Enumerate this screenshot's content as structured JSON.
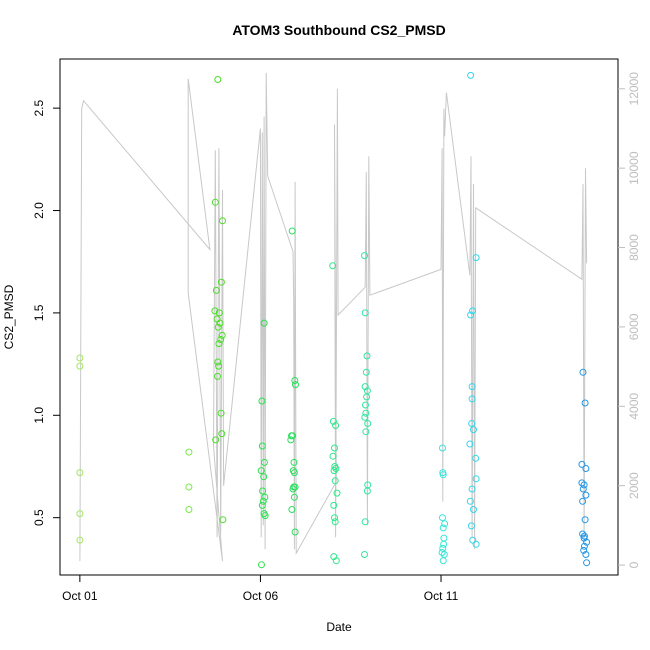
{
  "chart_data": {
    "type": "scatter",
    "title": "ATOM3 Southbound CS2_PMSD",
    "xlabel": "Date",
    "ylabel": "CS2_PMSD",
    "y_ticks": [
      0.5,
      1.0,
      1.5,
      2.0,
      2.5
    ],
    "y_tick_labels": [
      "0.5",
      "1.0",
      "1.5",
      "2.0",
      "2.5"
    ],
    "ylim": [
      0.22,
      2.74
    ],
    "y2_ticks": [
      0,
      2000,
      4000,
      6000,
      8000,
      10000,
      12000
    ],
    "y2_tick_labels": [
      "0",
      "2000",
      "4000",
      "6000",
      "8000",
      "10000",
      "12000"
    ],
    "y2lim": [
      -250,
      12750
    ],
    "x_ticks": [
      1,
      6,
      11
    ],
    "x_tick_labels": [
      "Oct 01",
      "Oct 06",
      "Oct 11"
    ],
    "xlim": [
      0.45,
      15.9
    ],
    "grid": false,
    "legend": "none",
    "colors": {
      "axis": "#000000",
      "secondary_axis": "#bdbdbd",
      "background_line": "#c8c8c8"
    },
    "points": [
      {
        "x": 1.0,
        "y": 1.28,
        "color": "#a2e85d"
      },
      {
        "x": 1.0,
        "y": 1.24,
        "color": "#a2e85d"
      },
      {
        "x": 1.0,
        "y": 0.72,
        "color": "#a2e85d"
      },
      {
        "x": 1.0,
        "y": 0.52,
        "color": "#a2e85d"
      },
      {
        "x": 1.0,
        "y": 0.39,
        "color": "#a2e85d"
      },
      {
        "x": 4.02,
        "y": 0.82,
        "color": "#7de84a"
      },
      {
        "x": 4.02,
        "y": 0.65,
        "color": "#7de84a"
      },
      {
        "x": 4.02,
        "y": 0.54,
        "color": "#7de84a"
      },
      {
        "x": 4.82,
        "y": 2.64,
        "color": "#4cdd2c"
      },
      {
        "x": 4.75,
        "y": 2.04,
        "color": "#4cdd2c"
      },
      {
        "x": 4.95,
        "y": 1.95,
        "color": "#4cdd2c"
      },
      {
        "x": 4.92,
        "y": 1.65,
        "color": "#4cdd2c"
      },
      {
        "x": 4.78,
        "y": 1.61,
        "color": "#4cdd2c"
      },
      {
        "x": 4.74,
        "y": 1.51,
        "color": "#4cdd2c"
      },
      {
        "x": 4.86,
        "y": 1.5,
        "color": "#4cdd2c"
      },
      {
        "x": 4.8,
        "y": 1.47,
        "color": "#4cdd2c"
      },
      {
        "x": 4.88,
        "y": 1.45,
        "color": "#4cdd2c"
      },
      {
        "x": 4.83,
        "y": 1.43,
        "color": "#4cdd2c"
      },
      {
        "x": 4.94,
        "y": 1.39,
        "color": "#4cdd2c"
      },
      {
        "x": 4.9,
        "y": 1.37,
        "color": "#4cdd2c"
      },
      {
        "x": 4.85,
        "y": 1.35,
        "color": "#4cdd2c"
      },
      {
        "x": 4.82,
        "y": 1.26,
        "color": "#4cdd2c"
      },
      {
        "x": 4.84,
        "y": 1.24,
        "color": "#4cdd2c"
      },
      {
        "x": 4.81,
        "y": 1.19,
        "color": "#4cdd2c"
      },
      {
        "x": 4.91,
        "y": 1.01,
        "color": "#4cdd2c"
      },
      {
        "x": 4.93,
        "y": 0.91,
        "color": "#4cdd2c"
      },
      {
        "x": 4.76,
        "y": 0.88,
        "color": "#4cdd2c"
      },
      {
        "x": 4.96,
        "y": 0.49,
        "color": "#4cdd2c"
      },
      {
        "x": 6.1,
        "y": 1.45,
        "color": "#30df52"
      },
      {
        "x": 6.04,
        "y": 1.07,
        "color": "#30df52"
      },
      {
        "x": 6.05,
        "y": 0.85,
        "color": "#30df52"
      },
      {
        "x": 6.11,
        "y": 0.77,
        "color": "#30df52"
      },
      {
        "x": 6.02,
        "y": 0.73,
        "color": "#30df52"
      },
      {
        "x": 6.09,
        "y": 0.7,
        "color": "#30df52"
      },
      {
        "x": 6.06,
        "y": 0.63,
        "color": "#30df52"
      },
      {
        "x": 6.12,
        "y": 0.6,
        "color": "#30df52"
      },
      {
        "x": 6.08,
        "y": 0.58,
        "color": "#30df52"
      },
      {
        "x": 6.05,
        "y": 0.56,
        "color": "#30df52"
      },
      {
        "x": 6.1,
        "y": 0.52,
        "color": "#30df52"
      },
      {
        "x": 6.13,
        "y": 0.51,
        "color": "#30df52"
      },
      {
        "x": 6.03,
        "y": 0.27,
        "color": "#30df52"
      },
      {
        "x": 6.88,
        "y": 1.9,
        "color": "#2cdf5e"
      },
      {
        "x": 6.95,
        "y": 1.17,
        "color": "#2cdf5e"
      },
      {
        "x": 6.97,
        "y": 1.15,
        "color": "#2cdf5e"
      },
      {
        "x": 6.86,
        "y": 0.9,
        "color": "#2cdf5e"
      },
      {
        "x": 6.89,
        "y": 0.9,
        "color": "#2cdf5e"
      },
      {
        "x": 6.84,
        "y": 0.88,
        "color": "#2cdf5e"
      },
      {
        "x": 6.93,
        "y": 0.77,
        "color": "#2cdf5e"
      },
      {
        "x": 6.91,
        "y": 0.73,
        "color": "#2cdf5e"
      },
      {
        "x": 6.94,
        "y": 0.72,
        "color": "#2cdf5e"
      },
      {
        "x": 6.92,
        "y": 0.65,
        "color": "#2cdf5e"
      },
      {
        "x": 6.96,
        "y": 0.65,
        "color": "#2cdf5e"
      },
      {
        "x": 6.9,
        "y": 0.64,
        "color": "#2cdf5e"
      },
      {
        "x": 6.94,
        "y": 0.6,
        "color": "#2cdf5e"
      },
      {
        "x": 6.87,
        "y": 0.54,
        "color": "#2cdf5e"
      },
      {
        "x": 6.96,
        "y": 0.43,
        "color": "#2cdf5e"
      },
      {
        "x": 8.0,
        "y": 1.73,
        "color": "#2ce88a"
      },
      {
        "x": 8.02,
        "y": 0.97,
        "color": "#2ce88a"
      },
      {
        "x": 8.08,
        "y": 0.95,
        "color": "#2ce88a"
      },
      {
        "x": 8.05,
        "y": 0.84,
        "color": "#2ce88a"
      },
      {
        "x": 8.01,
        "y": 0.8,
        "color": "#2ce88a"
      },
      {
        "x": 8.06,
        "y": 0.75,
        "color": "#2ce88a"
      },
      {
        "x": 8.09,
        "y": 0.74,
        "color": "#2ce88a"
      },
      {
        "x": 8.04,
        "y": 0.73,
        "color": "#2ce88a"
      },
      {
        "x": 8.07,
        "y": 0.68,
        "color": "#2ce88a"
      },
      {
        "x": 8.12,
        "y": 0.62,
        "color": "#2ce88a"
      },
      {
        "x": 8.03,
        "y": 0.56,
        "color": "#2ce88a"
      },
      {
        "x": 8.05,
        "y": 0.5,
        "color": "#2ce88a"
      },
      {
        "x": 8.07,
        "y": 0.48,
        "color": "#2ce88a"
      },
      {
        "x": 8.03,
        "y": 0.31,
        "color": "#2ce88a"
      },
      {
        "x": 8.1,
        "y": 0.29,
        "color": "#2ce88a"
      },
      {
        "x": 8.88,
        "y": 1.78,
        "color": "#30e6a0"
      },
      {
        "x": 8.9,
        "y": 1.5,
        "color": "#30e6a0"
      },
      {
        "x": 8.95,
        "y": 1.29,
        "color": "#30e6a0"
      },
      {
        "x": 8.93,
        "y": 1.21,
        "color": "#30e6a0"
      },
      {
        "x": 8.9,
        "y": 1.14,
        "color": "#30e6a0"
      },
      {
        "x": 8.96,
        "y": 1.12,
        "color": "#30e6a0"
      },
      {
        "x": 8.94,
        "y": 1.09,
        "color": "#30e6a0"
      },
      {
        "x": 8.91,
        "y": 1.05,
        "color": "#30e6a0"
      },
      {
        "x": 8.92,
        "y": 1.01,
        "color": "#30e6a0"
      },
      {
        "x": 8.89,
        "y": 0.99,
        "color": "#30e6a0"
      },
      {
        "x": 8.97,
        "y": 0.96,
        "color": "#30e6a0"
      },
      {
        "x": 8.92,
        "y": 0.92,
        "color": "#30e6a0"
      },
      {
        "x": 8.97,
        "y": 0.66,
        "color": "#30e6a0"
      },
      {
        "x": 8.96,
        "y": 0.63,
        "color": "#30e6a0"
      },
      {
        "x": 8.9,
        "y": 0.48,
        "color": "#30e6a0"
      },
      {
        "x": 8.88,
        "y": 0.32,
        "color": "#30e6a0"
      },
      {
        "x": 11.04,
        "y": 0.84,
        "color": "#34e6d8"
      },
      {
        "x": 11.05,
        "y": 0.72,
        "color": "#34e6d8"
      },
      {
        "x": 11.06,
        "y": 0.71,
        "color": "#34e6d8"
      },
      {
        "x": 11.04,
        "y": 0.5,
        "color": "#34e6d8"
      },
      {
        "x": 11.1,
        "y": 0.47,
        "color": "#34e6d8"
      },
      {
        "x": 11.06,
        "y": 0.45,
        "color": "#34e6d8"
      },
      {
        "x": 11.08,
        "y": 0.4,
        "color": "#34e6d8"
      },
      {
        "x": 11.07,
        "y": 0.37,
        "color": "#34e6d8"
      },
      {
        "x": 11.05,
        "y": 0.35,
        "color": "#34e6d8"
      },
      {
        "x": 11.03,
        "y": 0.33,
        "color": "#34e6d8"
      },
      {
        "x": 11.09,
        "y": 0.32,
        "color": "#34e6d8"
      },
      {
        "x": 11.06,
        "y": 0.29,
        "color": "#34e6d8"
      },
      {
        "x": 11.82,
        "y": 2.66,
        "color": "#34d6ea"
      },
      {
        "x": 11.97,
        "y": 1.77,
        "color": "#34d6ea"
      },
      {
        "x": 11.82,
        "y": 1.49,
        "color": "#34d6ea"
      },
      {
        "x": 11.87,
        "y": 1.51,
        "color": "#34d6ea"
      },
      {
        "x": 11.86,
        "y": 1.14,
        "color": "#34d6ea"
      },
      {
        "x": 11.86,
        "y": 1.08,
        "color": "#34d6ea"
      },
      {
        "x": 11.85,
        "y": 0.96,
        "color": "#34d6ea"
      },
      {
        "x": 11.9,
        "y": 0.93,
        "color": "#34d6ea"
      },
      {
        "x": 11.8,
        "y": 0.86,
        "color": "#34d6ea"
      },
      {
        "x": 11.96,
        "y": 0.79,
        "color": "#34d6ea"
      },
      {
        "x": 11.97,
        "y": 0.69,
        "color": "#34d6ea"
      },
      {
        "x": 11.86,
        "y": 0.64,
        "color": "#34d6ea"
      },
      {
        "x": 11.81,
        "y": 0.58,
        "color": "#34d6ea"
      },
      {
        "x": 11.9,
        "y": 0.54,
        "color": "#34d6ea"
      },
      {
        "x": 11.84,
        "y": 0.46,
        "color": "#34d6ea"
      },
      {
        "x": 11.88,
        "y": 0.39,
        "color": "#34d6ea"
      },
      {
        "x": 11.97,
        "y": 0.37,
        "color": "#34d6ea"
      },
      {
        "x": 14.93,
        "y": 1.21,
        "color": "#2496e6"
      },
      {
        "x": 14.99,
        "y": 1.06,
        "color": "#2496e6"
      },
      {
        "x": 14.9,
        "y": 0.76,
        "color": "#2496e6"
      },
      {
        "x": 15.01,
        "y": 0.74,
        "color": "#2496e6"
      },
      {
        "x": 14.9,
        "y": 0.67,
        "color": "#2496e6"
      },
      {
        "x": 14.96,
        "y": 0.66,
        "color": "#2496e6"
      },
      {
        "x": 14.94,
        "y": 0.64,
        "color": "#2496e6"
      },
      {
        "x": 15.01,
        "y": 0.61,
        "color": "#2496e6"
      },
      {
        "x": 14.92,
        "y": 0.58,
        "color": "#2496e6"
      },
      {
        "x": 14.99,
        "y": 0.49,
        "color": "#2496e6"
      },
      {
        "x": 14.92,
        "y": 0.42,
        "color": "#2496e6"
      },
      {
        "x": 14.97,
        "y": 0.41,
        "color": "#2496e6"
      },
      {
        "x": 14.96,
        "y": 0.4,
        "color": "#2496e6"
      },
      {
        "x": 15.03,
        "y": 0.38,
        "color": "#2496e6"
      },
      {
        "x": 14.97,
        "y": 0.36,
        "color": "#2496e6"
      },
      {
        "x": 14.95,
        "y": 0.34,
        "color": "#2496e6"
      },
      {
        "x": 15.01,
        "y": 0.32,
        "color": "#2496e6"
      },
      {
        "x": 15.03,
        "y": 0.28,
        "color": "#2496e6"
      }
    ],
    "secondary_series": {
      "axis": "right",
      "color": "#c8c8c8",
      "points": [
        [
          1.0,
          100
        ],
        [
          1.05,
          11500
        ],
        [
          1.1,
          11700
        ],
        [
          4.6,
          7950
        ],
        [
          4.0,
          12250
        ],
        [
          4.0,
          6850
        ],
        [
          4.95,
          100
        ],
        [
          4.7,
          3000
        ],
        [
          4.75,
          10450
        ],
        [
          4.8,
          700
        ],
        [
          4.85,
          10500
        ],
        [
          4.9,
          800
        ],
        [
          4.95,
          9450
        ],
        [
          4.98,
          2000
        ],
        [
          6.0,
          11000
        ],
        [
          6.02,
          700
        ],
        [
          6.05,
          10900
        ],
        [
          6.08,
          1000
        ],
        [
          6.1,
          11300
        ],
        [
          6.13,
          400
        ],
        [
          6.16,
          12400
        ],
        [
          6.2,
          9800
        ],
        [
          6.9,
          7900
        ],
        [
          6.92,
          6700
        ],
        [
          6.94,
          400
        ],
        [
          6.96,
          9650
        ],
        [
          6.99,
          300
        ],
        [
          8.1,
          2100
        ],
        [
          8.05,
          11100
        ],
        [
          8.08,
          700
        ],
        [
          8.13,
          12000
        ],
        [
          8.15,
          6300
        ],
        [
          8.9,
          7000
        ],
        [
          8.93,
          9900
        ],
        [
          8.96,
          1000
        ],
        [
          9.0,
          10300
        ],
        [
          9.03,
          6800
        ],
        [
          11.0,
          7450
        ],
        [
          11.03,
          10500
        ],
        [
          11.05,
          1600
        ],
        [
          11.08,
          11500
        ],
        [
          11.1,
          10800
        ],
        [
          11.15,
          11900
        ],
        [
          11.8,
          7300
        ],
        [
          11.83,
          10300
        ],
        [
          11.86,
          700
        ],
        [
          11.9,
          9600
        ],
        [
          11.93,
          400
        ],
        [
          11.96,
          9000
        ],
        [
          14.9,
          7200
        ],
        [
          14.93,
          9600
        ],
        [
          14.96,
          600
        ],
        [
          15.0,
          10000
        ],
        [
          15.03,
          7600
        ]
      ]
    }
  }
}
